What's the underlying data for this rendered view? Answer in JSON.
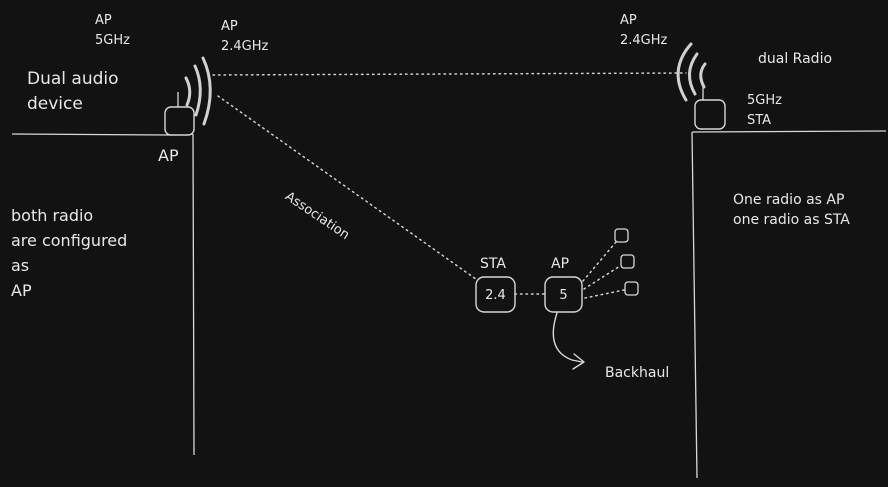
{
  "left_device": {
    "ap_5ghz_line1": "AP",
    "ap_5ghz_line2": "5GHz",
    "ap_24ghz_line1": "AP",
    "ap_24ghz_line2": "2.4GHz",
    "title_line1": "Dual audio",
    "title_line2": "device",
    "under_label": "AP",
    "note_lines": [
      "both radio",
      "are configured",
      "as",
      "AP"
    ]
  },
  "right_device": {
    "ap_line1": "AP",
    "ap_line2": "2.4GHz",
    "title": "dual Radio",
    "sta_line1": "5GHz",
    "sta_line2": "STA",
    "note_lines": [
      "One radio as AP",
      "one radio as STA"
    ]
  },
  "middle": {
    "association_label": "Association",
    "sta_label": "STA",
    "ap_label": "AP",
    "sta_box_value": "2.4",
    "ap_box_value": "5",
    "backhaul_label": "Backhaul"
  },
  "colors": {
    "background": "#121212",
    "stroke": "#d8d8d8",
    "text": "#e8e8e8"
  }
}
